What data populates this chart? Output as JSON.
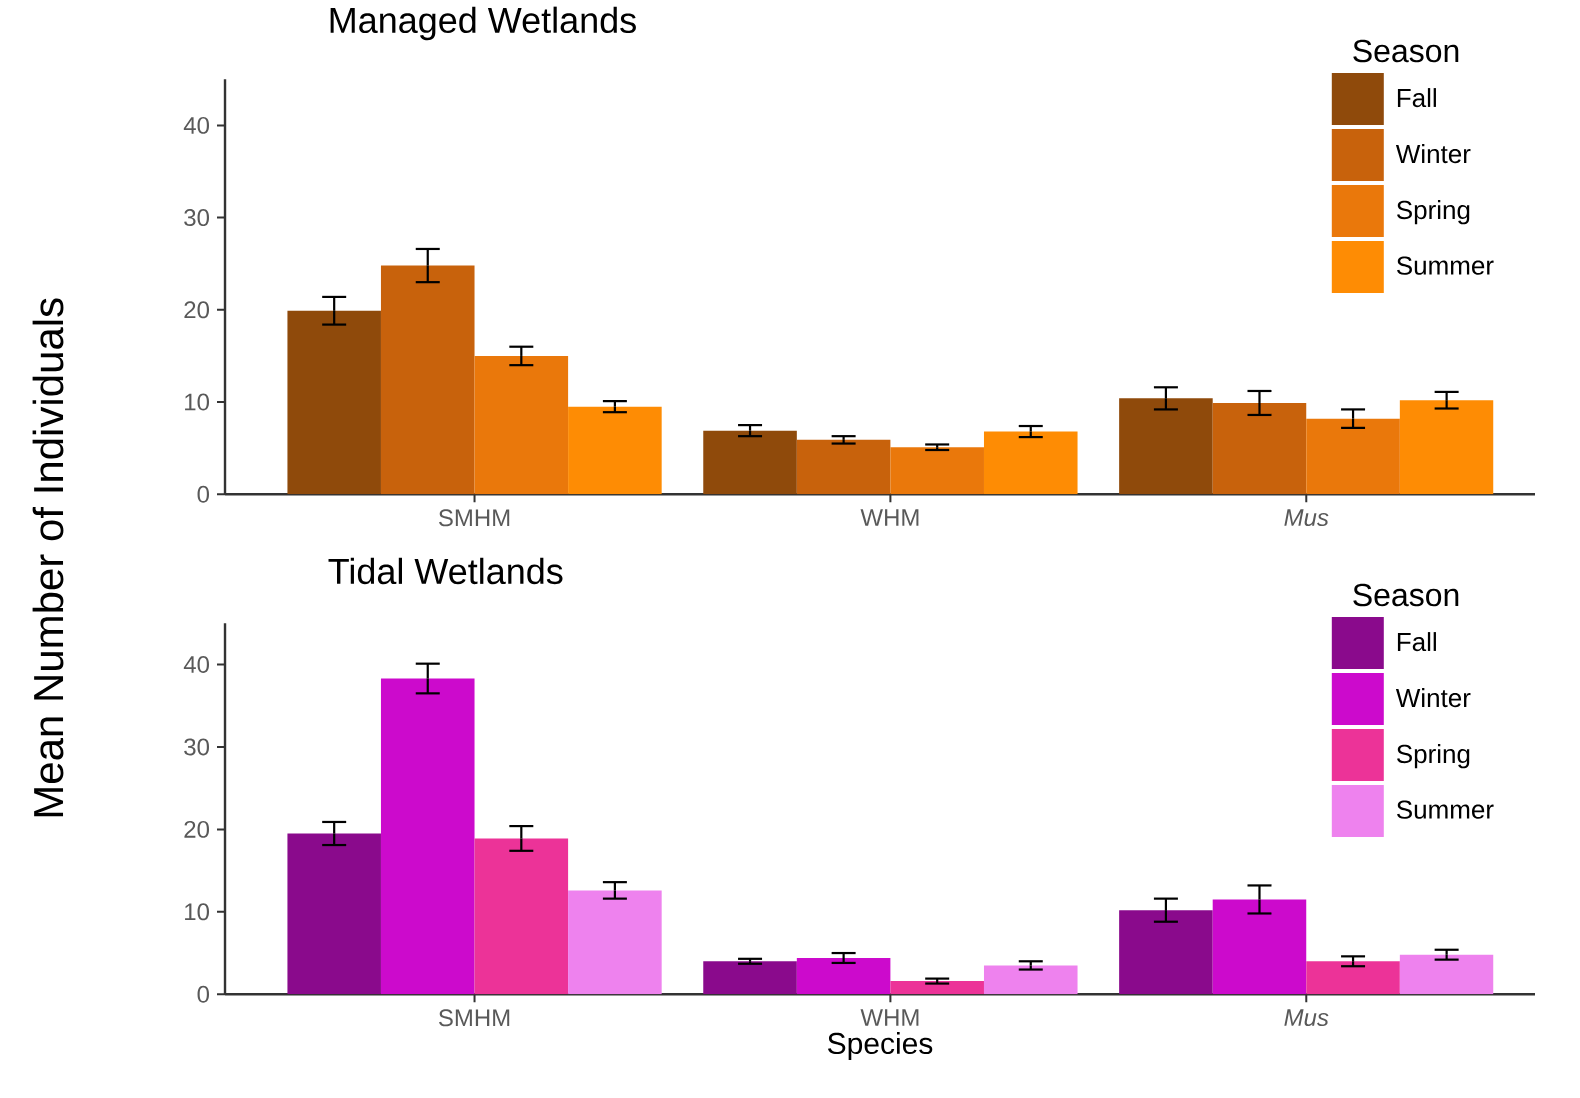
{
  "chart_data": [
    {
      "type": "bar",
      "title": "Managed Wetlands",
      "ylabel": "Mean Number of Individuals",
      "categories": [
        "SMHM",
        "WHM",
        "*Mus*"
      ],
      "ylim": [
        0,
        45
      ],
      "yticks": [
        0,
        10,
        20,
        30,
        40
      ],
      "legend": "top right",
      "legend_title": "Season",
      "series": [
        {
          "name": "Fall",
          "color": "#8f4a0b",
          "values": [
            19.9,
            6.9,
            10.4
          ],
          "errors": [
            1.5,
            0.6,
            1.2
          ]
        },
        {
          "name": "Winter",
          "color": "#c8620c",
          "values": [
            24.8,
            5.9,
            9.9
          ],
          "errors": [
            1.8,
            0.4,
            1.3
          ]
        },
        {
          "name": "Spring",
          "color": "#ea780b",
          "values": [
            15.0,
            5.1,
            8.2
          ],
          "errors": [
            1.0,
            0.3,
            1.0
          ]
        },
        {
          "name": "Summer",
          "color": "#fe8c04",
          "values": [
            9.5,
            6.8,
            10.2
          ],
          "errors": [
            0.6,
            0.6,
            0.9
          ]
        }
      ]
    },
    {
      "type": "bar",
      "title": "Tidal Wetlands",
      "xlabel": "Species",
      "categories": [
        "SMHM",
        "WHM",
        "*Mus*"
      ],
      "ylim": [
        0,
        45
      ],
      "yticks": [
        0,
        10,
        20,
        30,
        40
      ],
      "legend": "top right",
      "legend_title": "Season",
      "series": [
        {
          "name": "Fall",
          "color": "#8a0a8c",
          "values": [
            19.5,
            4.0,
            10.2
          ],
          "errors": [
            1.4,
            0.3,
            1.4
          ]
        },
        {
          "name": "Winter",
          "color": "#cc0acc",
          "values": [
            38.3,
            4.4,
            11.5
          ],
          "errors": [
            1.8,
            0.6,
            1.7
          ]
        },
        {
          "name": "Spring",
          "color": "#ec3398",
          "values": [
            18.9,
            1.6,
            4.0
          ],
          "errors": [
            1.5,
            0.3,
            0.6
          ]
        },
        {
          "name": "Summer",
          "color": "#ee82ee",
          "values": [
            12.6,
            3.5,
            4.8
          ],
          "errors": [
            1.0,
            0.5,
            0.6
          ]
        }
      ]
    }
  ]
}
